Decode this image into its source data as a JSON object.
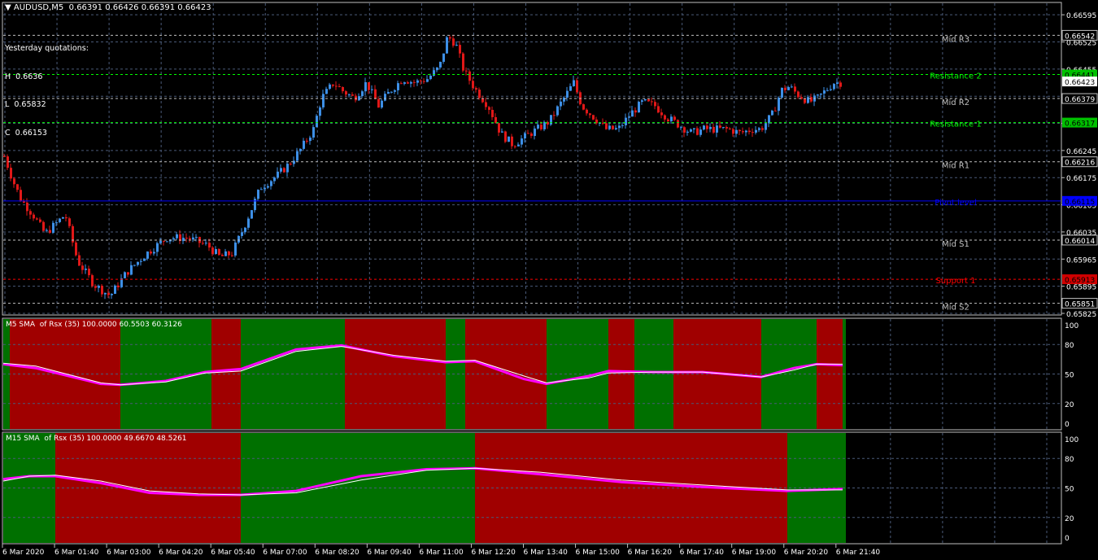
{
  "header": {
    "symbol": "AUDUSD,M5",
    "quote": "0.66391 0.66426 0.66391 0.66423",
    "menu_arrow": "triangle-down-icon"
  },
  "yesterday": {
    "title": "Yesterday quotations:",
    "h": "H  0.6636",
    "l": "L  0.65832",
    "c": "C  0.66153"
  },
  "colors": {
    "bull": "#3d8fe6",
    "bear": "#e01818",
    "green_band": "#007000",
    "red_band": "#a00000",
    "magenta": "#ff00ff",
    "grid": "#4a5a78"
  },
  "chart_data": [
    {
      "type": "candlestick",
      "title": "AUDUSD,M5",
      "ylim": [
        0.65825,
        0.6661
      ],
      "y_ticks": [
        "0.66595",
        "0.66525",
        "0.66455",
        "0.66385",
        "0.66315",
        "0.66245",
        "0.66175",
        "0.66105",
        "0.66035",
        "0.65965",
        "0.65895",
        "0.65825"
      ],
      "x_labels": [
        "6 Mar 2020",
        "6 Mar 01:40",
        "6 Mar 03:00",
        "6 Mar 04:20",
        "6 Mar 05:40",
        "6 Mar 07:00",
        "6 Mar 08:20",
        "6 Mar 09:40",
        "6 Mar 11:00",
        "6 Mar 12:20",
        "6 Mar 13:40",
        "6 Mar 15:00",
        "6 Mar 16:20",
        "6 Mar 17:40",
        "6 Mar 19:00",
        "6 Mar 20:20",
        "6 Mar 21:40"
      ],
      "current_price": "0.66423",
      "price_path": [
        [
          0,
          0.6623
        ],
        [
          4,
          0.6617
        ],
        [
          8,
          0.6612
        ],
        [
          14,
          0.6608
        ],
        [
          20,
          0.6603
        ],
        [
          30,
          0.6608
        ],
        [
          36,
          0.6596
        ],
        [
          44,
          0.659
        ],
        [
          52,
          0.6587
        ],
        [
          60,
          0.6593
        ],
        [
          70,
          0.6598
        ],
        [
          80,
          0.6602
        ],
        [
          90,
          0.6602
        ],
        [
          100,
          0.66
        ],
        [
          106,
          0.6597
        ],
        [
          112,
          0.6598
        ],
        [
          118,
          0.6605
        ],
        [
          126,
          0.6615
        ],
        [
          134,
          0.6618
        ],
        [
          140,
          0.6621
        ],
        [
          146,
          0.6625
        ],
        [
          152,
          0.663
        ],
        [
          156,
          0.6638
        ],
        [
          162,
          0.6642
        ],
        [
          166,
          0.664
        ],
        [
          172,
          0.6638
        ],
        [
          178,
          0.6642
        ],
        [
          184,
          0.6636
        ],
        [
          190,
          0.664
        ],
        [
          196,
          0.6643
        ],
        [
          202,
          0.6642
        ],
        [
          208,
          0.6643
        ],
        [
          214,
          0.6646
        ],
        [
          218,
          0.6654
        ],
        [
          222,
          0.6652
        ],
        [
          226,
          0.6645
        ],
        [
          232,
          0.664
        ],
        [
          238,
          0.6636
        ],
        [
          244,
          0.6629
        ],
        [
          250,
          0.6626
        ],
        [
          256,
          0.6628
        ],
        [
          262,
          0.663
        ],
        [
          268,
          0.6632
        ],
        [
          274,
          0.6637
        ],
        [
          280,
          0.6642
        ],
        [
          284,
          0.6636
        ],
        [
          290,
          0.6633
        ],
        [
          296,
          0.663
        ],
        [
          302,
          0.663
        ],
        [
          308,
          0.6634
        ],
        [
          314,
          0.6637
        ],
        [
          320,
          0.6636
        ],
        [
          326,
          0.6633
        ],
        [
          332,
          0.6631
        ],
        [
          338,
          0.6629
        ],
        [
          344,
          0.663
        ],
        [
          350,
          0.663
        ],
        [
          356,
          0.663
        ],
        [
          362,
          0.6629
        ],
        [
          368,
          0.663
        ],
        [
          372,
          0.663
        ],
        [
          378,
          0.6634
        ],
        [
          382,
          0.664
        ],
        [
          386,
          0.6641
        ],
        [
          390,
          0.6639
        ],
        [
          396,
          0.6637
        ],
        [
          400,
          0.6638
        ],
        [
          404,
          0.664
        ],
        [
          408,
          0.6642
        ]
      ],
      "levels": [
        {
          "name": "Mid R3",
          "price": 0.66542,
          "label": "0.66542",
          "color": "#c0c0c0",
          "tag": "#000000",
          "style": "dash"
        },
        {
          "name": "Resistance 2",
          "price": 0.66441,
          "label": "0.66441",
          "color": "#00ff00",
          "tag": "#00c000",
          "style": "dash"
        },
        {
          "name": "Mid R2",
          "price": 0.66379,
          "label": "0.66379",
          "color": "#c0c0c0",
          "tag": "#000000",
          "style": "dash"
        },
        {
          "name": "Resistance 1",
          "price": 0.66317,
          "label": "0.66317",
          "color": "#00ff00",
          "tag": "#00c000",
          "style": "dash"
        },
        {
          "name": "Mid R1",
          "price": 0.66216,
          "label": "0.66216",
          "color": "#c0c0c0",
          "tag": "#000000",
          "style": "dash"
        },
        {
          "name": "Pivot level",
          "price": 0.66115,
          "label": "0.66115",
          "color": "#0000ff",
          "tag": "#0000ff",
          "style": "solid"
        },
        {
          "name": "Mid S1",
          "price": 0.66014,
          "label": "0.66014",
          "color": "#c0c0c0",
          "tag": "#000000",
          "style": "dash"
        },
        {
          "name": "Support 1",
          "price": 0.65913,
          "label": "0.65913",
          "color": "#ff0000",
          "tag": "#d00000",
          "style": "dash"
        },
        {
          "name": "Mid S2",
          "price": 0.65851,
          "label": "0.65851",
          "color": "#c0c0c0",
          "tag": "#000000",
          "style": "dash"
        }
      ]
    },
    {
      "type": "area",
      "title": "M5 SMA  of Rsx (35) 100.0000 60.5503 60.3126",
      "ylim": [
        0,
        100
      ],
      "y_ticks": [
        "100",
        "80",
        "50",
        "20",
        "0"
      ],
      "bands": [
        {
          "from": 0,
          "to": 2,
          "state": "green"
        },
        {
          "from": 2,
          "to": 36,
          "state": "red"
        },
        {
          "from": 36,
          "to": 64,
          "state": "green"
        },
        {
          "from": 64,
          "to": 73,
          "state": "red"
        },
        {
          "from": 73,
          "to": 105,
          "state": "green"
        },
        {
          "from": 105,
          "to": 136,
          "state": "red"
        },
        {
          "from": 136,
          "to": 142,
          "state": "green"
        },
        {
          "from": 142,
          "to": 167,
          "state": "red"
        },
        {
          "from": 167,
          "to": 186,
          "state": "green"
        },
        {
          "from": 186,
          "to": 194,
          "state": "red"
        },
        {
          "from": 194,
          "to": 206,
          "state": "green"
        },
        {
          "from": 206,
          "to": 233,
          "state": "red"
        },
        {
          "from": 233,
          "to": 250,
          "state": "green"
        },
        {
          "from": 250,
          "to": 258,
          "state": "red"
        },
        {
          "from": 258,
          "to": 259,
          "state": "green"
        }
      ],
      "series": [
        {
          "name": "60.5503",
          "color": "#ff00ff",
          "values": [
            [
              0,
              60
            ],
            [
              10,
              56
            ],
            [
              30,
              40
            ],
            [
              36,
              39
            ],
            [
              50,
              43
            ],
            [
              62,
              52
            ],
            [
              73,
              55
            ],
            [
              90,
              75
            ],
            [
              104,
              79
            ],
            [
              120,
              68
            ],
            [
              136,
              62
            ],
            [
              145,
              63
            ],
            [
              160,
              45
            ],
            [
              167,
              40
            ],
            [
              180,
              48
            ],
            [
              186,
              53
            ],
            [
              200,
              52
            ],
            [
              215,
              52
            ],
            [
              233,
              47
            ],
            [
              243,
              56
            ],
            [
              250,
              60
            ],
            [
              258,
              59
            ]
          ]
        },
        {
          "name": "60.3126",
          "color": "#ffffff",
          "values": [
            [
              0,
              61
            ],
            [
              10,
              58
            ],
            [
              30,
              41
            ],
            [
              36,
              39
            ],
            [
              50,
              42
            ],
            [
              62,
              51
            ],
            [
              73,
              53
            ],
            [
              90,
              73
            ],
            [
              104,
              78
            ],
            [
              120,
              69
            ],
            [
              136,
              63
            ],
            [
              145,
              64
            ],
            [
              160,
              48
            ],
            [
              167,
              41
            ],
            [
              180,
              46
            ],
            [
              186,
              51
            ],
            [
              200,
              52
            ],
            [
              215,
              52
            ],
            [
              233,
              47
            ],
            [
              243,
              54
            ],
            [
              250,
              60
            ],
            [
              258,
              60
            ]
          ]
        }
      ]
    },
    {
      "type": "area",
      "title": "M15 SMA  of Rsx (35) 100.0000 49.6670 48.5261",
      "ylim": [
        0,
        100
      ],
      "y_ticks": [
        "100",
        "80",
        "50",
        "20",
        "0"
      ],
      "bands": [
        {
          "from": 0,
          "to": 16,
          "state": "green"
        },
        {
          "from": 16,
          "to": 73,
          "state": "red"
        },
        {
          "from": 73,
          "to": 145,
          "state": "green"
        },
        {
          "from": 145,
          "to": 241,
          "state": "red"
        },
        {
          "from": 241,
          "to": 259,
          "state": "green"
        }
      ],
      "series": [
        {
          "name": "49.6670",
          "color": "#ff00ff",
          "values": [
            [
              0,
              59
            ],
            [
              8,
              62
            ],
            [
              16,
              62
            ],
            [
              30,
              55
            ],
            [
              45,
              45
            ],
            [
              60,
              43
            ],
            [
              73,
              43
            ],
            [
              90,
              47
            ],
            [
              110,
              62
            ],
            [
              130,
              69
            ],
            [
              145,
              70
            ],
            [
              165,
              64
            ],
            [
              190,
              56
            ],
            [
              215,
              51
            ],
            [
              241,
              47
            ],
            [
              258,
              49
            ]
          ]
        },
        {
          "name": "48.5261",
          "color": "#ffffff",
          "values": [
            [
              0,
              57
            ],
            [
              8,
              62
            ],
            [
              16,
              63
            ],
            [
              30,
              57
            ],
            [
              45,
              47
            ],
            [
              60,
              44
            ],
            [
              73,
              43
            ],
            [
              90,
              45
            ],
            [
              110,
              58
            ],
            [
              130,
              68
            ],
            [
              145,
              70
            ],
            [
              165,
              66
            ],
            [
              190,
              58
            ],
            [
              215,
              53
            ],
            [
              241,
              48
            ],
            [
              258,
              48
            ]
          ]
        }
      ]
    }
  ]
}
